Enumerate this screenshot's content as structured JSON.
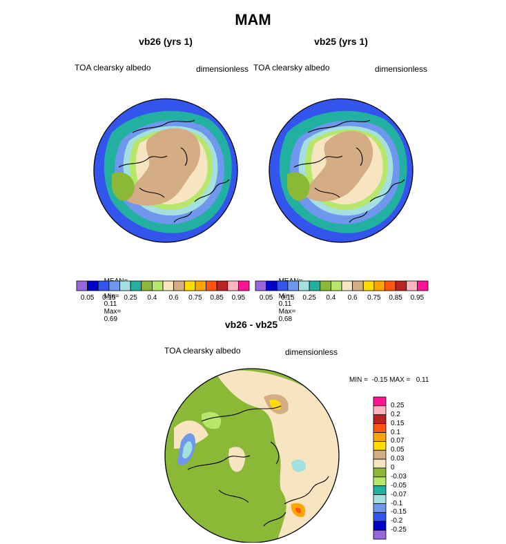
{
  "page_title": "MAM",
  "colors": {
    "scale": [
      "#9966dd",
      "#0000cc",
      "#3355ee",
      "#6f97ee",
      "#a5e0e0",
      "#22b0a0",
      "#8cb838",
      "#b6e66a",
      "#f7e4c1",
      "#d4ad85",
      "#ffdd00",
      "#ffa500",
      "#ff5511",
      "#bb2222",
      "#ffb6c1",
      "#ff1493"
    ],
    "diff_scale": [
      "#9966dd",
      "#0000cc",
      "#3355ee",
      "#6f97ee",
      "#a5e0e0",
      "#22b0a0",
      "#b6e66a",
      "#8cb838",
      "#f7e4c1",
      "#d4ad85",
      "#ffdd00",
      "#ffa500",
      "#ff5511",
      "#bb2222",
      "#ffb6c1",
      "#ff1493"
    ]
  },
  "panels": [
    {
      "title": "vb26 (yrs 1)",
      "field_label": "TOA clearsky albedo",
      "units": "dimensionless",
      "stats": {
        "mean_label": "MEAN=",
        "mean": "0.36",
        "min_label": "Min=",
        "min": "0.11",
        "max_label": "Max=",
        "max": "0.69"
      }
    },
    {
      "title": "vb25 (yrs 1)",
      "field_label": "TOA clearsky albedo",
      "units": "dimensionless",
      "stats": {
        "mean_label": "MEAN=",
        "mean": "0.36",
        "min_label": "Min=",
        "min": "0.11",
        "max_label": "Max=",
        "max": "0.68"
      }
    }
  ],
  "colorbar_ticks": [
    "0.05",
    "0.15",
    "0.25",
    "0.4",
    "0.6",
    "0.75",
    "0.85",
    "0.95"
  ],
  "diff_panel": {
    "title": "vb26 - vb25",
    "field_label": "TOA clearsky albedo",
    "units": "dimensionless",
    "minmax": "MIN =  -0.15 MAX =   0.11",
    "colorbar_ticks": [
      "0.25",
      "0.2",
      "0.15",
      "0.1",
      "0.07",
      "0.05",
      "0.03",
      "0",
      "-0.03",
      "-0.05",
      "-0.07",
      "-0.1",
      "-0.15",
      "-0.2",
      "-0.25"
    ]
  }
}
